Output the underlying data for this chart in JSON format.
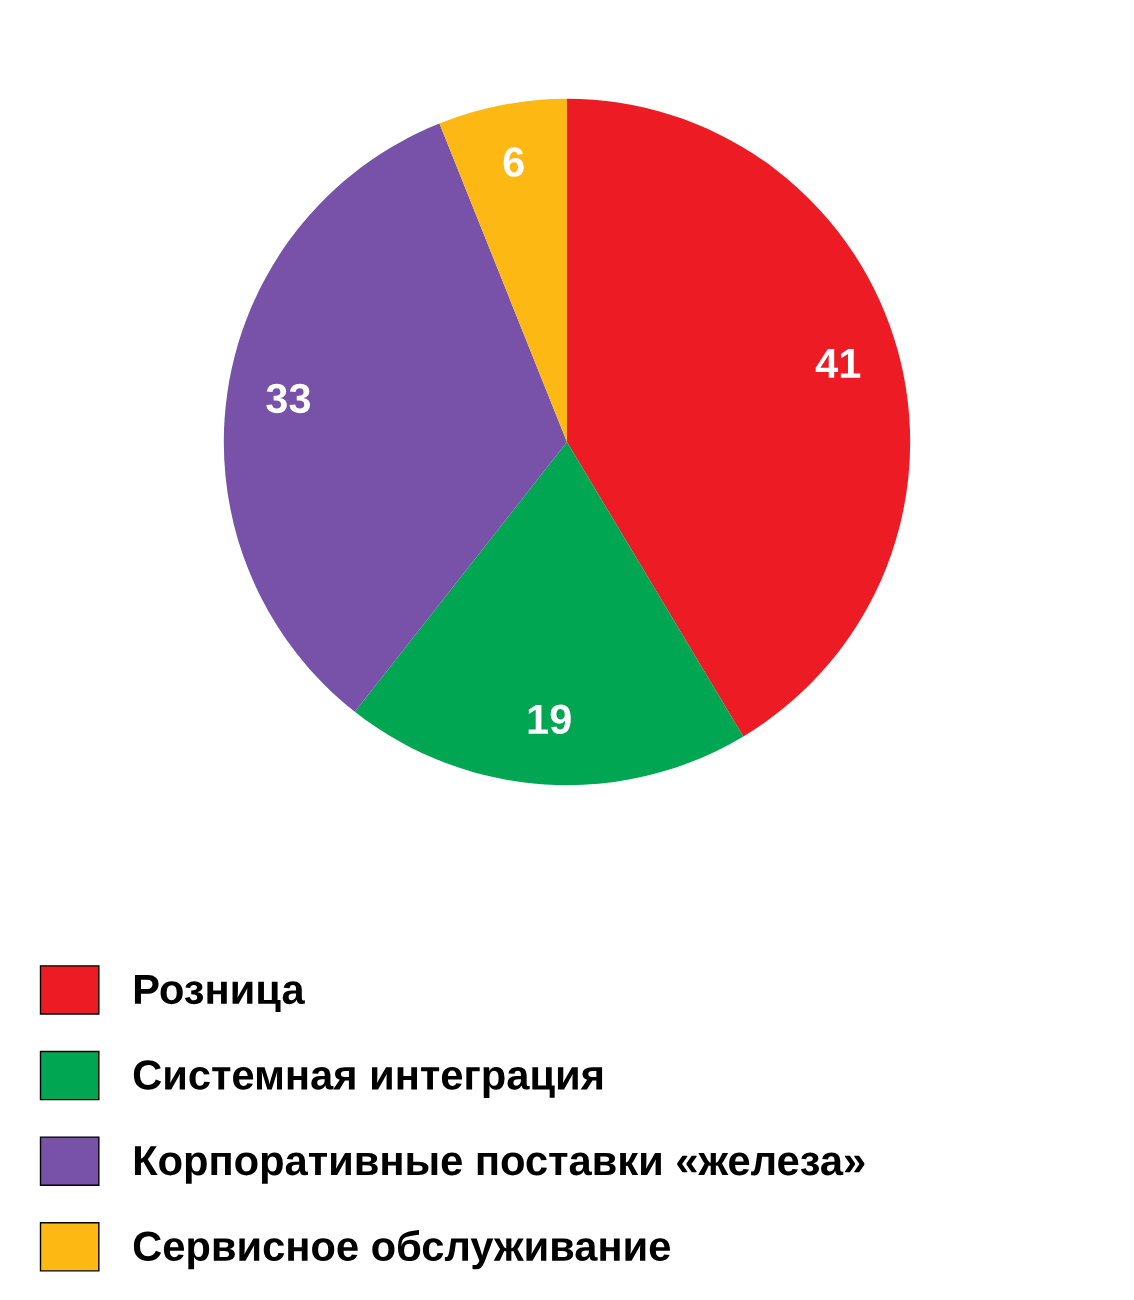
{
  "chart_data": {
    "type": "pie",
    "categories": [
      "Розница",
      "Системная интеграция",
      "Корпоративные поставки «железа»",
      "Сервисное обслуживание"
    ],
    "values": [
      41,
      19,
      33,
      6
    ],
    "colors": [
      "#ed1c24",
      "#00a651",
      "#7851a9",
      "#fdb813"
    ],
    "data_labels": true,
    "legend": "bottom"
  }
}
